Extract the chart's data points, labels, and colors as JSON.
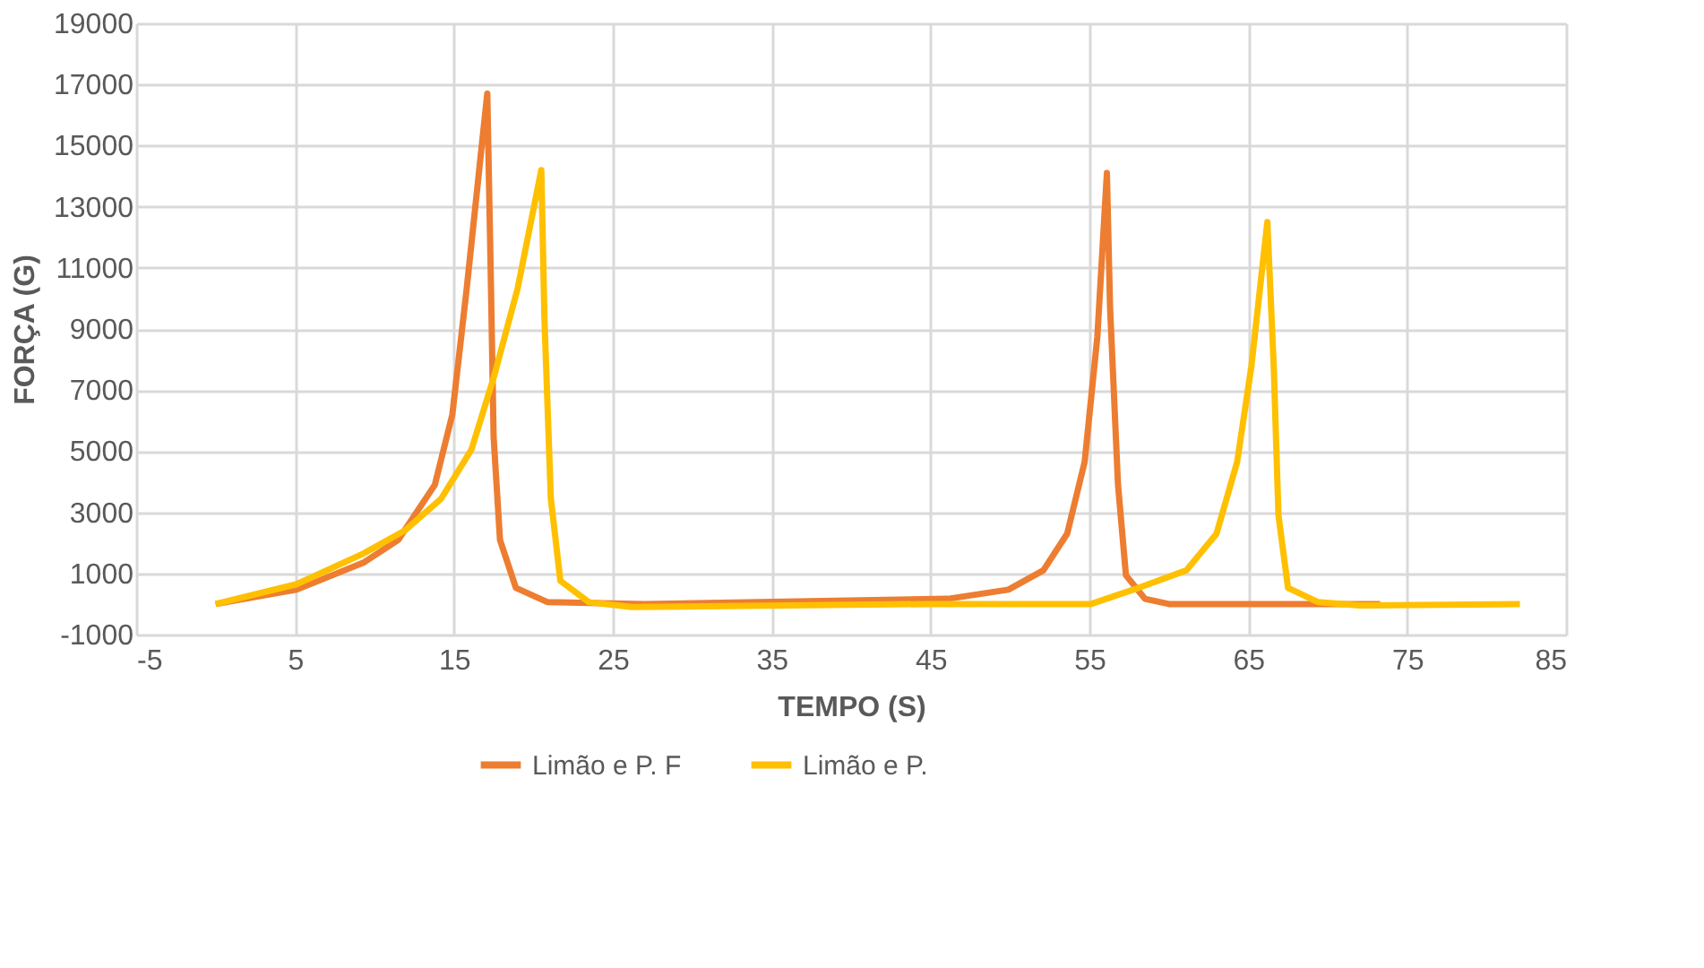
{
  "chart_data": {
    "type": "line",
    "xlabel": "TEMPO (S)",
    "ylabel": "FORÇA (G)",
    "xlim": [
      -5,
      85
    ],
    "xticks": [
      -5,
      5,
      15,
      25,
      35,
      45,
      55,
      65,
      75,
      85
    ],
    "ylim": [
      -1000,
      19000
    ],
    "yticks": [
      -1000,
      1000,
      3000,
      5000,
      7000,
      9000,
      11000,
      13000,
      15000,
      17000,
      19000
    ],
    "grid": true,
    "legend": "bottom",
    "marker": "none",
    "line_style": "solid",
    "series": [
      {
        "name": "Limão e P. F",
        "color": "#ed7d31",
        "x": [
          0,
          5.1,
          9.3,
          11.5,
          13.8,
          14.9,
          15.8,
          16.6,
          17.1,
          17.3,
          17.5,
          17.9,
          18.9,
          20.9,
          27,
          46.1,
          49.9,
          52.1,
          53.6,
          54.7,
          55.5,
          56.1,
          56.3,
          56.8,
          57.3,
          58.5,
          60,
          73.3
        ],
        "values": [
          0,
          470,
          1350,
          2100,
          3900,
          6200,
          10300,
          14250,
          16700,
          11300,
          5450,
          2100,
          530,
          60,
          0,
          170,
          470,
          1100,
          2300,
          4650,
          8750,
          14100,
          9700,
          3900,
          940,
          170,
          0,
          0
        ]
      },
      {
        "name": "Limão e P.",
        "color": "#ffc000",
        "x": [
          0,
          5.1,
          9.3,
          11.9,
          14.2,
          16.1,
          17.5,
          19,
          20.5,
          20.7,
          21.1,
          21.7,
          23.5,
          26.2,
          45,
          55.1,
          58.1,
          61.1,
          63,
          64.3,
          65.2,
          66.2,
          66.6,
          66.9,
          67.5,
          69.4,
          72,
          82.1
        ],
        "values": [
          0,
          650,
          1650,
          2400,
          3450,
          5050,
          7400,
          10300,
          14200,
          9300,
          3450,
          760,
          60,
          -100,
          0,
          0,
          530,
          1100,
          2300,
          4650,
          7800,
          12500,
          7800,
          2900,
          530,
          60,
          -50,
          0
        ]
      }
    ]
  }
}
